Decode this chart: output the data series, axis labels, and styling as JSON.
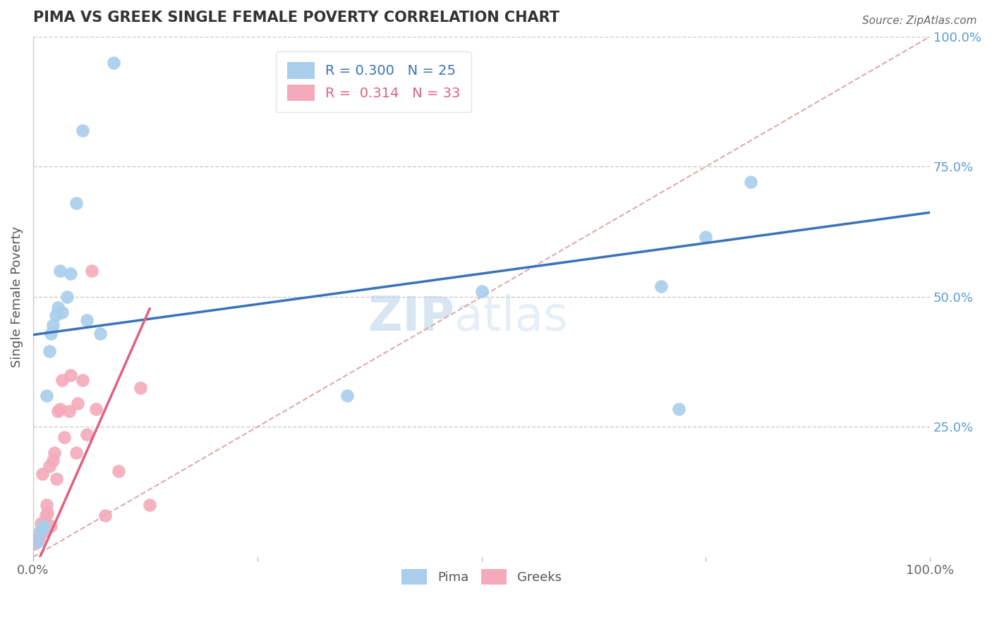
{
  "title": "PIMA VS GREEK SINGLE FEMALE POVERTY CORRELATION CHART",
  "source": "Source: ZipAtlas.com",
  "ylabel": "Single Female Poverty",
  "xlim": [
    0,
    1.0
  ],
  "ylim": [
    0,
    1.0
  ],
  "legend_r_pima": "0.300",
  "legend_n_pima": "25",
  "legend_r_greek": "0.314",
  "legend_n_greek": "33",
  "pima_color": "#A8CEEC",
  "greek_color": "#F4AABB",
  "pima_line_color": "#3A72B8",
  "greek_line_color": "#E06080",
  "diag_line_color": "#E0AAAA",
  "watermark_zip": "ZIP",
  "watermark_atlas": "atlas",
  "background_color": "#FFFFFF",
  "pima_x": [
    0.005,
    0.008,
    0.01,
    0.012,
    0.015,
    0.018,
    0.02,
    0.022,
    0.025,
    0.028,
    0.03,
    0.032,
    0.038,
    0.042,
    0.048,
    0.055,
    0.06,
    0.075,
    0.09,
    0.35,
    0.5,
    0.7,
    0.72,
    0.75,
    0.8
  ],
  "pima_y": [
    0.03,
    0.05,
    0.055,
    0.06,
    0.31,
    0.395,
    0.43,
    0.445,
    0.465,
    0.48,
    0.55,
    0.47,
    0.5,
    0.545,
    0.68,
    0.82,
    0.455,
    0.43,
    0.95,
    0.31,
    0.51,
    0.52,
    0.285,
    0.615,
    0.72
  ],
  "greek_x": [
    0.002,
    0.004,
    0.005,
    0.006,
    0.007,
    0.008,
    0.009,
    0.01,
    0.012,
    0.014,
    0.015,
    0.016,
    0.018,
    0.02,
    0.022,
    0.024,
    0.026,
    0.028,
    0.03,
    0.032,
    0.035,
    0.04,
    0.042,
    0.048,
    0.05,
    0.055,
    0.06,
    0.065,
    0.07,
    0.08,
    0.095,
    0.12,
    0.13
  ],
  "greek_y": [
    0.025,
    0.03,
    0.03,
    0.035,
    0.04,
    0.05,
    0.065,
    0.16,
    0.05,
    0.08,
    0.1,
    0.085,
    0.175,
    0.06,
    0.185,
    0.2,
    0.15,
    0.28,
    0.285,
    0.34,
    0.23,
    0.28,
    0.35,
    0.2,
    0.295,
    0.34,
    0.235,
    0.55,
    0.285,
    0.08,
    0.165,
    0.325,
    0.1
  ],
  "pima_intercept": 0.427,
  "pima_slope": 0.235,
  "greek_intercept": -0.03,
  "greek_slope": 3.9
}
